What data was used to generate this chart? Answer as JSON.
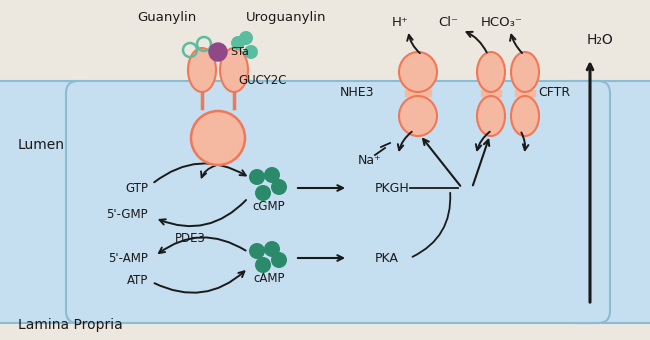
{
  "bg_outer": "#ede8df",
  "bg_cell": "#c5dff0",
  "cell_border": "#8abcd4",
  "salmon": "#f07858",
  "salmon_light": "#f5b8a0",
  "green_dark": "#2a8a6a",
  "green_light": "#5abda0",
  "purple": "#904888",
  "arrow_color": "#1a1a1a",
  "text_color": "#1a1a1a",
  "lumen_text": "Lumen",
  "lamina_text": "Lamina Propria",
  "guanylin_text": "Guanylin",
  "uroguanylin_text": "Uroguanylin",
  "sta_text": "STa",
  "gucy2c_text": "GUCY2C",
  "gtp_text": "GTP",
  "gmp_text": "5'-GMP",
  "cgmp_text": "cGMP",
  "pkgh_text": "PKGH",
  "pde3_text": "PDE3",
  "amp_text": "5'-AMP",
  "atp_text": "ATP",
  "camp_text": "cAMP",
  "pka_text": "PKA",
  "nhe3_text": "NHE3",
  "cftr_text": "CFTR",
  "na_text": "Na⁺",
  "h_text": "H⁺",
  "cl_text": "Cl⁻",
  "hco3_text": "HCO₃⁻",
  "h2o_text": "H₂O"
}
